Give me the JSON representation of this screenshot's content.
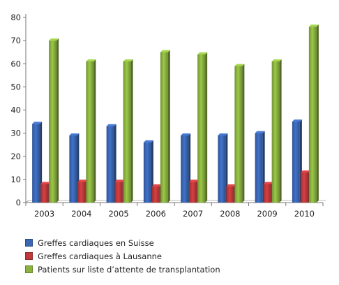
{
  "chart_data": {
    "type": "bar",
    "title": "",
    "xlabel": "",
    "ylabel": "",
    "categories": [
      "2003",
      "2004",
      "2005",
      "2006",
      "2007",
      "2008",
      "2009",
      "2010"
    ],
    "ylim": [
      0,
      80
    ],
    "yticks": [
      0,
      10,
      20,
      30,
      40,
      50,
      60,
      70,
      80
    ],
    "grid": false,
    "legend_position": "bottom-left",
    "series": [
      {
        "name": "Greffes cardiaques en Suisse",
        "color": "#3a66b4",
        "values": [
          34,
          29,
          33,
          26,
          29,
          29,
          30,
          35
        ]
      },
      {
        "name": "Greffes cardiaques à Lausanne",
        "color": "#c0393b",
        "values": [
          8,
          9,
          9,
          7,
          9,
          7,
          8,
          13
        ]
      },
      {
        "name": "Patients sur liste d’attente de transplantation",
        "color": "#8ab33f",
        "values": [
          70,
          61,
          61,
          65,
          64,
          59,
          61,
          76
        ]
      }
    ]
  }
}
